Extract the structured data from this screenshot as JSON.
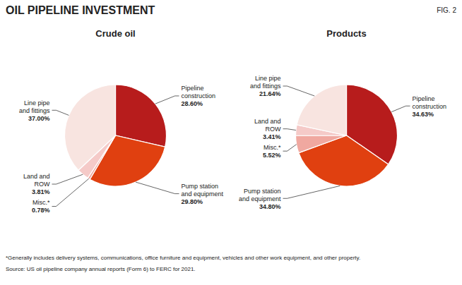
{
  "title": "OIL PIPELINE INVESTMENT",
  "annotations": [
    "FIG. 2",
    "*Generally includes delivery systems, communications, office furniture and equipment, vehicles and other work equipment, and other property.",
    "Source: US oil pipeline company annual reports (Form 6) to FERC for 2021."
  ],
  "chart_data": [
    {
      "type": "pie",
      "title": "Crude oil",
      "categories": [
        "Pipeline\nconstruction",
        "Pump station\nand equipment",
        "Misc.*",
        "Land and\nROW",
        "Line pipe\nand fittings"
      ],
      "values": [
        28.6,
        29.8,
        0.78,
        3.81,
        37.0
      ],
      "value_labels": [
        "28.60%",
        "29.80%",
        "0.78%",
        "3.81%",
        "37.00%"
      ],
      "colors": [
        "#b71c1c",
        "#e04010",
        "#f0a8a0",
        "#f5cac8",
        "#f8e4e0"
      ],
      "data_labels": true
    },
    {
      "type": "pie",
      "title": "Products",
      "categories": [
        "Pipeline\nconstruction",
        "Pump station\nand equipment",
        "Misc.*",
        "Land and\nROW",
        "Line pipe\nand fittings"
      ],
      "values": [
        34.63,
        34.8,
        5.52,
        3.41,
        21.64
      ],
      "value_labels": [
        "34.63%",
        "34.80%",
        "5.52%",
        "3.41%",
        "21.64%"
      ],
      "colors": [
        "#b71c1c",
        "#e04010",
        "#f0a8a0",
        "#f5cac8",
        "#f8e4e0"
      ],
      "data_labels": true
    }
  ]
}
